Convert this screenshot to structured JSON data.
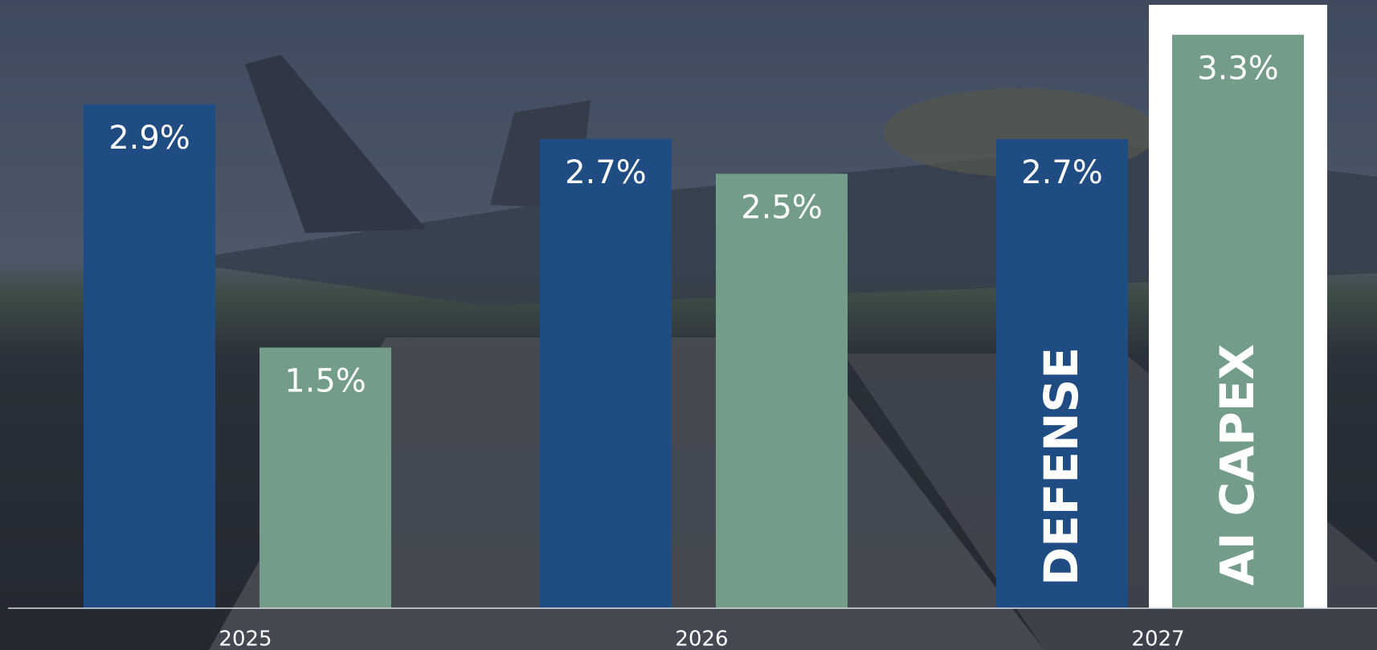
{
  "chart_data": {
    "type": "bar",
    "categories": [
      "2025",
      "2026",
      "2027"
    ],
    "series": [
      {
        "name": "DEFENSE",
        "color": "#1f4c82",
        "values": [
          2.9,
          2.7,
          2.7
        ],
        "value_labels": [
          "2.9%",
          "2.7%",
          "2.7%"
        ]
      },
      {
        "name": "AI CAPEX",
        "color": "#739d89",
        "values": [
          1.5,
          2.5,
          3.3
        ],
        "value_labels": [
          "1.5%",
          "2.5%",
          "3.3%"
        ]
      }
    ],
    "ylim": [
      0,
      3.5
    ]
  }
}
